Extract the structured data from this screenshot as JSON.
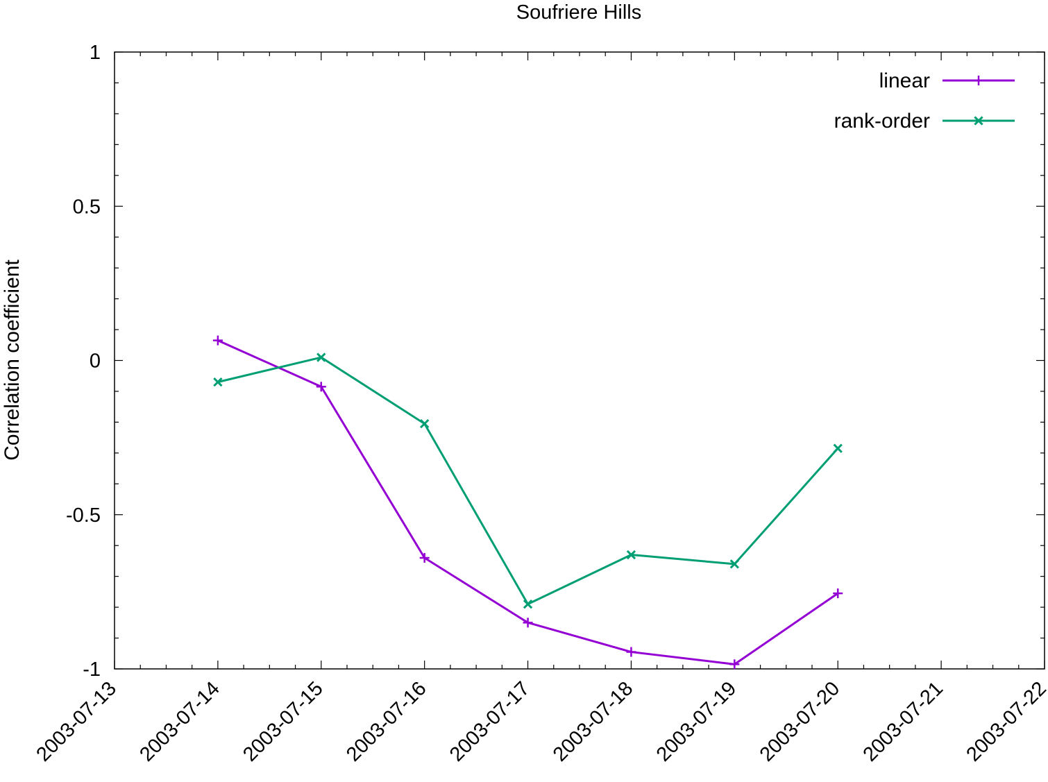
{
  "chart_data": {
    "type": "line",
    "title": "Soufriere Hills",
    "xlabel": "",
    "ylabel": "Correlation coefficient",
    "x_ticks": [
      "2003-07-13",
      "2003-07-14",
      "2003-07-15",
      "2003-07-16",
      "2003-07-17",
      "2003-07-18",
      "2003-07-19",
      "2003-07-20",
      "2003-07-21",
      "2003-07-22"
    ],
    "xlim": [
      "2003-07-13",
      "2003-07-22"
    ],
    "y_ticks": [
      "1",
      "0.5",
      "0",
      "-0.5",
      "-1"
    ],
    "ylim": [
      -1,
      1
    ],
    "grid": false,
    "legend_position": "top-right",
    "x": [
      "2003-07-14",
      "2003-07-15",
      "2003-07-16",
      "2003-07-17",
      "2003-07-18",
      "2003-07-19",
      "2003-07-20"
    ],
    "series": [
      {
        "name": "linear",
        "color": "#9400d3",
        "marker": "plus",
        "values": [
          0.065,
          -0.085,
          -0.64,
          -0.85,
          -0.945,
          -0.985,
          -0.755
        ]
      },
      {
        "name": "rank-order",
        "color": "#009e73",
        "marker": "cross",
        "values": [
          -0.07,
          0.01,
          -0.205,
          -0.79,
          -0.63,
          -0.66,
          -0.285
        ]
      }
    ]
  }
}
